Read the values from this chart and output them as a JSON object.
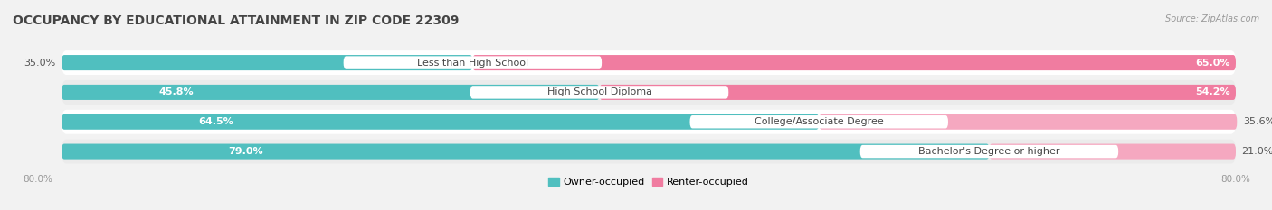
{
  "title": "OCCUPANCY BY EDUCATIONAL ATTAINMENT IN ZIP CODE 22309",
  "source": "Source: ZipAtlas.com",
  "categories": [
    "Less than High School",
    "High School Diploma",
    "College/Associate Degree",
    "Bachelor's Degree or higher"
  ],
  "owner_values": [
    35.0,
    45.8,
    64.5,
    79.0
  ],
  "renter_values": [
    65.0,
    54.2,
    35.6,
    21.0
  ],
  "owner_color": "#50BFBF",
  "renter_color_large": "#F07CA0",
  "renter_color_small": "#F5A8C0",
  "background_color": "#f2f2f2",
  "row_bg_color": "#ffffff",
  "row_alt_color": "#ebebeb",
  "total": 100.0,
  "title_fontsize": 10,
  "label_fontsize": 8,
  "value_fontsize": 8,
  "tick_fontsize": 7.5,
  "source_fontsize": 7
}
